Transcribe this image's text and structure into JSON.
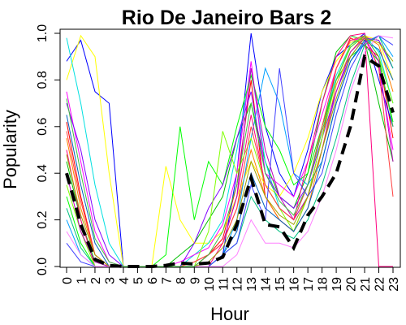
{
  "chart_data": {
    "type": "line",
    "title": "Rio De Janeiro Bars 2",
    "xlabel": "Hour",
    "ylabel": "Popularity",
    "x": [
      0,
      1,
      2,
      3,
      4,
      5,
      6,
      7,
      8,
      9,
      10,
      11,
      12,
      13,
      14,
      15,
      16,
      17,
      18,
      19,
      20,
      21,
      22,
      23
    ],
    "x_tick_labels": [
      "0",
      "1",
      "2",
      "3",
      "4",
      "5",
      "6",
      "7",
      "8",
      "9",
      "10",
      "11",
      "12",
      "13",
      "14",
      "15",
      "16",
      "17",
      "18",
      "19",
      "20",
      "21",
      "22",
      "23"
    ],
    "y_ticks": [
      0.0,
      0.2,
      0.4,
      0.6,
      0.8,
      1.0
    ],
    "y_tick_labels": [
      "0.0",
      "0.2",
      "0.4",
      "0.6",
      "0.8",
      "1.0"
    ],
    "xlim": [
      0,
      23
    ],
    "ylim": [
      0,
      1
    ],
    "grid": false,
    "legend": "none",
    "mean_series": {
      "values": [
        0.4,
        0.18,
        0.03,
        0.005,
        0.0,
        0.0,
        0.0,
        0.005,
        0.015,
        0.01,
        0.015,
        0.04,
        0.18,
        0.38,
        0.18,
        0.17,
        0.08,
        0.22,
        0.3,
        0.4,
        0.6,
        0.9,
        0.86,
        0.66
      ],
      "color": "#000000",
      "style": "dashed"
    },
    "individual_series": [
      {
        "color": "#ff0000",
        "values": [
          0.62,
          0.3,
          0.05,
          0.0,
          0.0,
          0.0,
          0.0,
          0.0,
          0.0,
          0.02,
          0.05,
          0.12,
          0.35,
          0.8,
          0.3,
          0.2,
          0.15,
          0.3,
          0.55,
          0.85,
          0.98,
          0.95,
          0.9,
          0.55
        ]
      },
      {
        "color": "#00c000",
        "values": [
          0.45,
          0.2,
          0.02,
          0.0,
          0.0,
          0.0,
          0.0,
          0.0,
          0.05,
          0.1,
          0.2,
          0.3,
          0.55,
          0.7,
          0.45,
          0.3,
          0.25,
          0.4,
          0.7,
          0.92,
          0.99,
          0.97,
          0.7,
          0.45
        ]
      },
      {
        "color": "#0000ff",
        "values": [
          0.88,
          0.97,
          0.75,
          0.7,
          0.0,
          0.0,
          0.0,
          0.0,
          0.0,
          0.0,
          0.0,
          0.05,
          0.4,
          1.0,
          0.6,
          0.4,
          0.3,
          0.5,
          0.75,
          0.9,
          0.95,
          1.0,
          0.8,
          0.6
        ]
      },
      {
        "color": "#ffff00",
        "values": [
          0.8,
          0.99,
          0.9,
          0.4,
          0.0,
          0.0,
          0.0,
          0.43,
          0.2,
          0.1,
          0.1,
          0.15,
          0.3,
          0.45,
          0.35,
          0.3,
          0.4,
          0.55,
          0.75,
          0.88,
          0.96,
          0.99,
          0.97,
          0.8
        ]
      },
      {
        "color": "#00e0e0",
        "values": [
          0.98,
          0.7,
          0.35,
          0.1,
          0.0,
          0.0,
          0.0,
          0.0,
          0.0,
          0.05,
          0.1,
          0.2,
          0.5,
          0.85,
          0.45,
          0.25,
          0.2,
          0.35,
          0.6,
          0.82,
          0.95,
          0.99,
          0.92,
          0.7
        ]
      },
      {
        "color": "#ff00ff",
        "values": [
          0.75,
          0.45,
          0.15,
          0.02,
          0.0,
          0.0,
          0.0,
          0.0,
          0.02,
          0.05,
          0.08,
          0.18,
          0.4,
          0.88,
          0.4,
          0.35,
          0.3,
          0.45,
          0.65,
          0.85,
          0.97,
          0.98,
          0.85,
          0.5
        ]
      },
      {
        "color": "#00ff00",
        "values": [
          0.3,
          0.1,
          0.0,
          0.0,
          0.0,
          0.0,
          0.0,
          0.05,
          0.6,
          0.2,
          0.45,
          0.35,
          0.6,
          0.82,
          0.6,
          0.5,
          0.35,
          0.4,
          0.6,
          0.8,
          0.9,
          0.95,
          0.88,
          0.62
        ]
      },
      {
        "color": "#ff8000",
        "values": [
          0.55,
          0.25,
          0.05,
          0.0,
          0.0,
          0.0,
          0.0,
          0.0,
          0.0,
          0.0,
          0.05,
          0.1,
          0.25,
          0.5,
          0.3,
          0.2,
          0.15,
          0.25,
          0.5,
          0.78,
          0.92,
          0.99,
          0.95,
          0.75
        ]
      },
      {
        "color": "#8000ff",
        "values": [
          0.7,
          0.5,
          0.2,
          0.05,
          0.0,
          0.0,
          0.0,
          0.0,
          0.0,
          0.1,
          0.25,
          0.35,
          0.55,
          0.75,
          0.4,
          0.3,
          0.25,
          0.35,
          0.55,
          0.75,
          0.9,
          0.98,
          0.97,
          0.85
        ]
      },
      {
        "color": "#00a0ff",
        "values": [
          0.2,
          0.05,
          0.0,
          0.0,
          0.0,
          0.0,
          0.0,
          0.0,
          0.0,
          0.0,
          0.0,
          0.05,
          0.2,
          0.55,
          0.85,
          0.7,
          0.4,
          0.35,
          0.45,
          0.7,
          0.88,
          0.96,
          0.99,
          0.9
        ]
      },
      {
        "color": "#ff0080",
        "values": [
          0.5,
          0.2,
          0.0,
          0.0,
          0.0,
          0.0,
          0.0,
          0.0,
          0.0,
          0.0,
          0.0,
          0.1,
          0.3,
          0.65,
          0.35,
          0.25,
          0.2,
          0.45,
          0.7,
          0.9,
          0.99,
          1.0,
          0.0,
          0.0
        ]
      },
      {
        "color": "#80ff00",
        "values": [
          0.35,
          0.15,
          0.0,
          0.0,
          0.0,
          0.0,
          0.0,
          0.0,
          0.0,
          0.0,
          0.15,
          0.58,
          0.4,
          0.55,
          0.35,
          0.25,
          0.15,
          0.3,
          0.55,
          0.8,
          0.95,
          0.99,
          0.9,
          0.7
        ]
      },
      {
        "color": "#0060c0",
        "values": [
          0.65,
          0.35,
          0.1,
          0.0,
          0.0,
          0.0,
          0.0,
          0.0,
          0.0,
          0.0,
          0.0,
          0.05,
          0.15,
          0.4,
          0.25,
          0.2,
          0.15,
          0.25,
          0.45,
          0.7,
          0.88,
          0.97,
          0.93,
          0.8
        ]
      },
      {
        "color": "#c000c0",
        "values": [
          0.4,
          0.15,
          0.02,
          0.0,
          0.0,
          0.0,
          0.0,
          0.0,
          0.0,
          0.0,
          0.05,
          0.1,
          0.3,
          0.85,
          0.5,
          0.3,
          0.2,
          0.3,
          0.5,
          0.75,
          0.92,
          0.98,
          0.88,
          0.45
        ]
      },
      {
        "color": "#00c080",
        "values": [
          0.25,
          0.08,
          0.0,
          0.0,
          0.0,
          0.0,
          0.0,
          0.0,
          0.0,
          0.0,
          0.0,
          0.05,
          0.1,
          0.3,
          0.2,
          0.15,
          0.12,
          0.2,
          0.35,
          0.55,
          0.78,
          0.95,
          0.99,
          0.85
        ]
      },
      {
        "color": "#ff4040",
        "values": [
          0.58,
          0.28,
          0.05,
          0.0,
          0.0,
          0.0,
          0.0,
          0.0,
          0.0,
          0.02,
          0.05,
          0.1,
          0.25,
          0.6,
          0.35,
          0.25,
          0.2,
          0.35,
          0.6,
          0.85,
          0.97,
          0.99,
          0.85,
          0.3
        ]
      },
      {
        "color": "#4040ff",
        "values": [
          0.1,
          0.02,
          0.0,
          0.0,
          0.0,
          0.0,
          0.0,
          0.0,
          0.0,
          0.0,
          0.0,
          0.05,
          0.1,
          0.35,
          0.2,
          0.85,
          0.4,
          0.3,
          0.4,
          0.65,
          0.85,
          0.96,
          0.99,
          0.95
        ]
      },
      {
        "color": "#a0a000",
        "values": [
          0.48,
          0.22,
          0.05,
          0.0,
          0.0,
          0.0,
          0.0,
          0.0,
          0.0,
          0.0,
          0.02,
          0.08,
          0.2,
          0.45,
          0.3,
          0.22,
          0.18,
          0.3,
          0.5,
          0.72,
          0.9,
          0.98,
          0.96,
          0.88
        ]
      },
      {
        "color": "#ff80ff",
        "values": [
          0.15,
          0.05,
          0.0,
          0.0,
          0.0,
          0.0,
          0.0,
          0.0,
          0.0,
          0.0,
          0.0,
          0.0,
          0.05,
          0.2,
          0.1,
          0.1,
          0.08,
          0.15,
          0.3,
          0.5,
          0.75,
          0.92,
          0.99,
          0.98
        ]
      },
      {
        "color": "#40c040",
        "values": [
          0.72,
          0.4,
          0.12,
          0.02,
          0.0,
          0.0,
          0.0,
          0.0,
          0.0,
          0.0,
          0.05,
          0.15,
          0.35,
          0.7,
          0.4,
          0.28,
          0.22,
          0.35,
          0.58,
          0.8,
          0.94,
          0.99,
          0.9,
          0.6
        ]
      }
    ]
  }
}
